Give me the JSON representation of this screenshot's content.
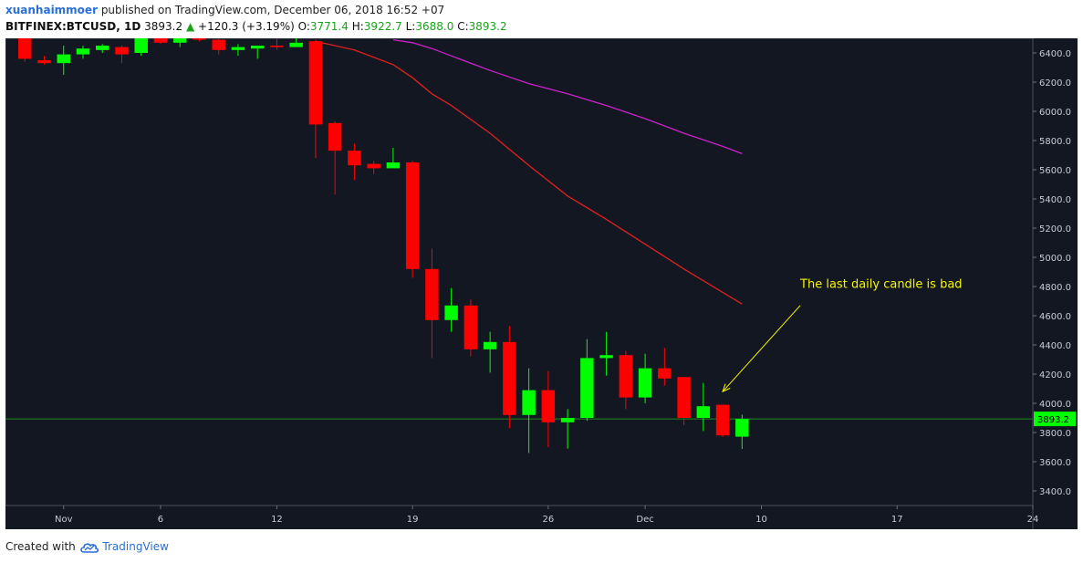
{
  "header": {
    "author": "xuanhaimmoer",
    "published": " published on TradingView.com, December 06, 2018 16:52 +07",
    "symbol": "BITFINEX:BTCUSD, 1D",
    "last": "3893.2",
    "change_arrow": "▲",
    "change": "+120.3 (+3.19%)",
    "o_label": "O:",
    "o_value": "3771.4",
    "h_label": "H:",
    "h_value": "3922.7",
    "l_label": "L:",
    "l_value": "3688.0",
    "c_label": "C:",
    "c_value": "3893.2"
  },
  "footer": {
    "created_with": "Created with",
    "brand": "TradingView"
  },
  "colors": {
    "background": "#131722",
    "bull": "#00ff00",
    "bear": "#ff0000",
    "ma_short": "#e0211f",
    "ma_long": "#cc22cc",
    "price_line": "#1f8a1f",
    "annotation": "#f5f500",
    "axis_text": "#c8ccd6"
  },
  "chart_data": {
    "type": "candlestick",
    "ylim": [
      3300,
      6500
    ],
    "y_ticks": [
      3400,
      3600,
      3800,
      4000,
      4200,
      4400,
      4600,
      4800,
      5000,
      5200,
      5400,
      5600,
      5800,
      6000,
      6200,
      6400
    ],
    "x_range": [
      -1,
      52
    ],
    "x_ticks": [
      {
        "i": 2,
        "label": "Nov"
      },
      {
        "i": 7,
        "label": "6"
      },
      {
        "i": 13,
        "label": "12"
      },
      {
        "i": 20,
        "label": "19"
      },
      {
        "i": 27,
        "label": "26"
      },
      {
        "i": 32,
        "label": "Dec"
      },
      {
        "i": 38,
        "label": "10"
      },
      {
        "i": 45,
        "label": "17"
      },
      {
        "i": 52,
        "label": "24"
      }
    ],
    "candles": [
      {
        "o": 6500,
        "h": 6530,
        "l": 6340,
        "c": 6360
      },
      {
        "o": 6350,
        "h": 6380,
        "l": 6320,
        "c": 6330
      },
      {
        "o": 6330,
        "h": 6450,
        "l": 6250,
        "c": 6390
      },
      {
        "o": 6390,
        "h": 6450,
        "l": 6360,
        "c": 6430
      },
      {
        "o": 6420,
        "h": 6460,
        "l": 6400,
        "c": 6450
      },
      {
        "o": 6440,
        "h": 6450,
        "l": 6330,
        "c": 6390
      },
      {
        "o": 6400,
        "h": 6540,
        "l": 6380,
        "c": 6510
      },
      {
        "o": 6500,
        "h": 6560,
        "l": 6460,
        "c": 6470
      },
      {
        "o": 6470,
        "h": 6520,
        "l": 6440,
        "c": 6500
      },
      {
        "o": 6510,
        "h": 6560,
        "l": 6480,
        "c": 6490
      },
      {
        "o": 6490,
        "h": 6510,
        "l": 6390,
        "c": 6420
      },
      {
        "o": 6420,
        "h": 6460,
        "l": 6380,
        "c": 6440
      },
      {
        "o": 6430,
        "h": 6450,
        "l": 6360,
        "c": 6450
      },
      {
        "o": 6450,
        "h": 6500,
        "l": 6420,
        "c": 6440
      },
      {
        "o": 6440,
        "h": 6500,
        "l": 6440,
        "c": 6470
      },
      {
        "o": 6480,
        "h": 6490,
        "l": 5680,
        "c": 5910
      },
      {
        "o": 5920,
        "h": 5930,
        "l": 5430,
        "c": 5730
      },
      {
        "o": 5730,
        "h": 5780,
        "l": 5530,
        "c": 5630
      },
      {
        "o": 5640,
        "h": 5660,
        "l": 5570,
        "c": 5610
      },
      {
        "o": 5610,
        "h": 5750,
        "l": 5610,
        "c": 5650
      },
      {
        "o": 5650,
        "h": 5660,
        "l": 4860,
        "c": 4920
      },
      {
        "o": 4920,
        "h": 5060,
        "l": 4310,
        "c": 4570
      },
      {
        "o": 4570,
        "h": 4790,
        "l": 4490,
        "c": 4670
      },
      {
        "o": 4670,
        "h": 4710,
        "l": 4320,
        "c": 4370
      },
      {
        "o": 4370,
        "h": 4490,
        "l": 4210,
        "c": 4420
      },
      {
        "o": 4420,
        "h": 4530,
        "l": 3830,
        "c": 3920
      },
      {
        "o": 3920,
        "h": 4240,
        "l": 3660,
        "c": 4090
      },
      {
        "o": 4090,
        "h": 4220,
        "l": 3700,
        "c": 3870
      },
      {
        "o": 3870,
        "h": 3960,
        "l": 3690,
        "c": 3900
      },
      {
        "o": 3900,
        "h": 4440,
        "l": 3880,
        "c": 4310
      },
      {
        "o": 4310,
        "h": 4490,
        "l": 4190,
        "c": 4330
      },
      {
        "o": 4330,
        "h": 4360,
        "l": 3960,
        "c": 4040
      },
      {
        "o": 4040,
        "h": 4340,
        "l": 4000,
        "c": 4240
      },
      {
        "o": 4240,
        "h": 4380,
        "l": 4120,
        "c": 4170
      },
      {
        "o": 4180,
        "h": 4180,
        "l": 3850,
        "c": 3900
      },
      {
        "o": 3900,
        "h": 4140,
        "l": 3810,
        "c": 3980
      },
      {
        "o": 3990,
        "h": 3990,
        "l": 3770,
        "c": 3780
      },
      {
        "o": 3771.4,
        "h": 3922.7,
        "l": 3688.0,
        "c": 3893.2
      }
    ],
    "ma_short": [
      {
        "i": 15,
        "v": 6480
      },
      {
        "i": 17,
        "v": 6420
      },
      {
        "i": 19,
        "v": 6320
      },
      {
        "i": 20,
        "v": 6230
      },
      {
        "i": 21,
        "v": 6120
      },
      {
        "i": 22,
        "v": 6040
      },
      {
        "i": 24,
        "v": 5850
      },
      {
        "i": 26,
        "v": 5630
      },
      {
        "i": 28,
        "v": 5420
      },
      {
        "i": 30,
        "v": 5260
      },
      {
        "i": 32,
        "v": 5090
      },
      {
        "i": 34,
        "v": 4920
      },
      {
        "i": 37,
        "v": 4680
      }
    ],
    "ma_long": [
      {
        "i": 19,
        "v": 6490
      },
      {
        "i": 20,
        "v": 6470
      },
      {
        "i": 21,
        "v": 6430
      },
      {
        "i": 22,
        "v": 6380
      },
      {
        "i": 24,
        "v": 6280
      },
      {
        "i": 26,
        "v": 6190
      },
      {
        "i": 28,
        "v": 6120
      },
      {
        "i": 30,
        "v": 6040
      },
      {
        "i": 32,
        "v": 5950
      },
      {
        "i": 34,
        "v": 5850
      },
      {
        "i": 36,
        "v": 5760
      },
      {
        "i": 37,
        "v": 5710
      }
    ],
    "current_price": 3893.2,
    "current_price_label": "3893.2",
    "annotation": {
      "text": "The last daily candle is bad",
      "text_at": {
        "i": 40,
        "v": 4790
      },
      "arrow_from": {
        "i": 40,
        "v": 4670
      },
      "arrow_to": {
        "i": 36,
        "v": 4080
      }
    }
  }
}
